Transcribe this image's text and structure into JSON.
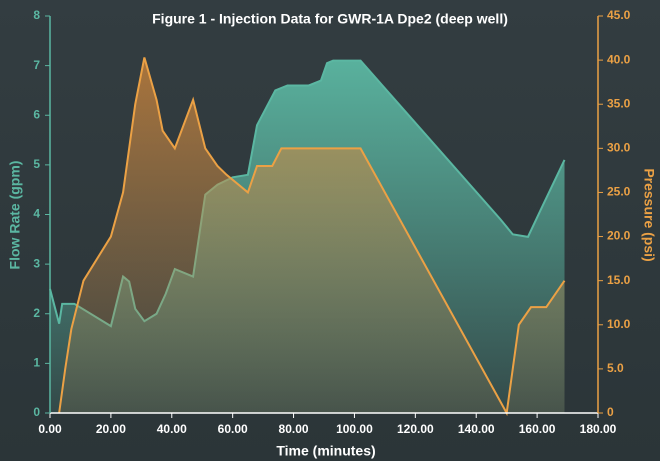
{
  "chart_data": {
    "type": "area",
    "title": "Figure 1 - Injection Data for GWR-1A Dpe2 (deep well)",
    "x_label": "Time (minutes)",
    "y_label": "Flow Rate (gpm)",
    "y2_label": "Pressure (psi)",
    "xlim": [
      0,
      180
    ],
    "xticks": [
      {
        "value": 0,
        "label": "0.00"
      },
      {
        "value": 20,
        "label": "20.00"
      },
      {
        "value": 40,
        "label": "40.00"
      },
      {
        "value": 60,
        "label": "60.00"
      },
      {
        "value": 80,
        "label": "80.00"
      },
      {
        "value": 100,
        "label": "100.00"
      },
      {
        "value": 120,
        "label": "120.00"
      },
      {
        "value": 140,
        "label": "140.00"
      },
      {
        "value": 160,
        "label": "160.00"
      },
      {
        "value": 180,
        "label": "180.00"
      }
    ],
    "ylim": [
      0,
      8
    ],
    "yticks": [
      0,
      1,
      2,
      3,
      4,
      5,
      6,
      7,
      8
    ],
    "y2lim": [
      0,
      45
    ],
    "y2ticks": [
      0,
      {
        "value": 5,
        "label": "5.0"
      },
      {
        "value": 10,
        "label": "10.0"
      },
      {
        "value": 15,
        "label": "15.0"
      },
      {
        "value": 20,
        "label": "20.0"
      },
      {
        "value": 25,
        "label": "25.0"
      },
      {
        "value": 30,
        "label": "30.0"
      },
      {
        "value": 35,
        "label": "35.0"
      },
      {
        "value": 40,
        "label": "40.0"
      },
      {
        "value": 45,
        "label": "45.0"
      }
    ],
    "series": [
      {
        "name": "Flow Rate",
        "color": "#5bb7a2",
        "x": [
          0,
          3,
          4,
          8,
          20,
          24,
          26,
          28,
          31,
          35,
          38,
          41,
          47,
          51,
          55,
          60,
          65,
          68,
          74,
          78,
          85,
          89,
          91,
          93,
          102,
          148,
          152,
          157,
          162,
          169
        ],
        "values": [
          2.5,
          1.8,
          2.2,
          2.2,
          1.75,
          2.75,
          2.65,
          2.1,
          1.85,
          2.0,
          2.4,
          2.9,
          2.75,
          4.4,
          4.6,
          4.75,
          4.8,
          5.8,
          6.5,
          6.6,
          6.6,
          6.7,
          7.05,
          7.1,
          7.1,
          3.9,
          3.6,
          3.55,
          4.2,
          5.1
        ]
      },
      {
        "name": "Pressure",
        "color": "#eba145",
        "axis": "y2",
        "x": [
          3,
          5,
          7,
          11,
          20,
          24,
          28,
          31,
          35,
          37,
          41,
          47,
          51,
          55,
          58,
          65,
          68,
          73,
          76,
          102,
          150,
          152,
          154,
          158,
          163,
          169
        ],
        "values": [
          0,
          5,
          9.5,
          15,
          20,
          25,
          35,
          40.3,
          35.5,
          32,
          30,
          35.5,
          30,
          28,
          27,
          25,
          28,
          28,
          30,
          30,
          0,
          5,
          10,
          12,
          12,
          15
        ]
      }
    ]
  }
}
